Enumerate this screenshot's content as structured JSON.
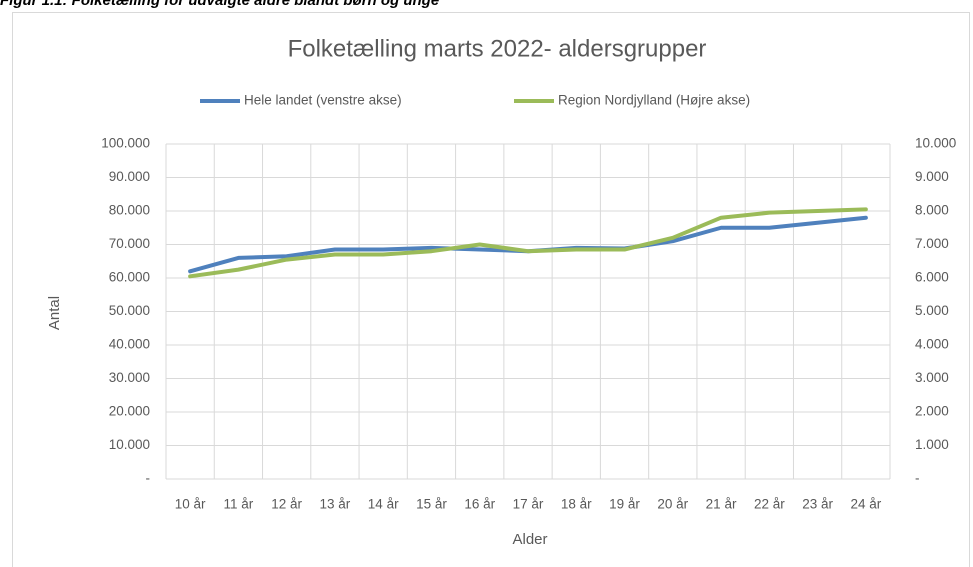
{
  "caption": "Figur 1.1: Folketælling for udvalgte aldre blandt børn og unge",
  "chart_data": {
    "type": "line",
    "title": "Folketælling marts 2022- aldersgrupper",
    "x_label": "Alder",
    "y_label": "Antal",
    "categories": [
      "10 år",
      "11 år",
      "12 år",
      "13 år",
      "14 år",
      "15 år",
      "16 år",
      "17 år",
      "18 år",
      "19 år",
      "20 år",
      "21 år",
      "22 år",
      "23 år",
      "24 år"
    ],
    "series": [
      {
        "name": "Hele landet (venstre akse)",
        "color": "#4f81bd",
        "axis": "y",
        "values": [
          62000,
          66000,
          66500,
          68500,
          68500,
          69000,
          68500,
          68000,
          69000,
          68800,
          71000,
          75000,
          75000,
          76500,
          78000
        ]
      },
      {
        "name": "Region Nordjylland (Højre akse)",
        "color": "#9bbb59",
        "axis": "y2",
        "values": [
          6050,
          6250,
          6550,
          6700,
          6700,
          6800,
          7000,
          6800,
          6850,
          6850,
          7200,
          7800,
          7950,
          8000,
          8050
        ]
      }
    ],
    "ylim": [
      0,
      100000
    ],
    "yticks": [
      {
        "value": 0,
        "label": "-"
      },
      {
        "value": 10000,
        "label": "10.000"
      },
      {
        "value": 20000,
        "label": "20.000"
      },
      {
        "value": 30000,
        "label": "30.000"
      },
      {
        "value": 40000,
        "label": "40.000"
      },
      {
        "value": 50000,
        "label": "50.000"
      },
      {
        "value": 60000,
        "label": "60.000"
      },
      {
        "value": 70000,
        "label": "70.000"
      },
      {
        "value": 80000,
        "label": "80.000"
      },
      {
        "value": 90000,
        "label": "90.000"
      },
      {
        "value": 100000,
        "label": "100.000"
      }
    ],
    "y2lim": [
      0,
      10000
    ],
    "y2ticks": [
      {
        "value": 0,
        "label": "-"
      },
      {
        "value": 1000,
        "label": "1.000"
      },
      {
        "value": 2000,
        "label": "2.000"
      },
      {
        "value": 3000,
        "label": "3.000"
      },
      {
        "value": 4000,
        "label": "4.000"
      },
      {
        "value": 5000,
        "label": "5.000"
      },
      {
        "value": 6000,
        "label": "6.000"
      },
      {
        "value": 7000,
        "label": "7.000"
      },
      {
        "value": 8000,
        "label": "8.000"
      },
      {
        "value": 9000,
        "label": "9.000"
      },
      {
        "value": 10000,
        "label": "10.000"
      }
    ],
    "grid": true,
    "legend": "top"
  }
}
